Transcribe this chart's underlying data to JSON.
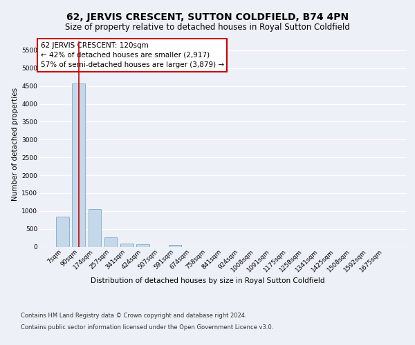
{
  "title": "62, JERVIS CRESCENT, SUTTON COLDFIELD, B74 4PN",
  "subtitle": "Size of property relative to detached houses in Royal Sutton Coldfield",
  "xlabel": "Distribution of detached houses by size in Royal Sutton Coldfield",
  "ylabel": "Number of detached properties",
  "categories": [
    "7sqm",
    "90sqm",
    "174sqm",
    "257sqm",
    "341sqm",
    "424sqm",
    "507sqm",
    "591sqm",
    "674sqm",
    "758sqm",
    "841sqm",
    "924sqm",
    "1008sqm",
    "1091sqm",
    "1175sqm",
    "1258sqm",
    "1341sqm",
    "1425sqm",
    "1508sqm",
    "1592sqm",
    "1675sqm"
  ],
  "values": [
    850,
    4580,
    1050,
    265,
    88,
    72,
    0,
    52,
    0,
    0,
    0,
    0,
    0,
    0,
    0,
    0,
    0,
    0,
    0,
    0,
    0
  ],
  "bar_color": "#c5d8ea",
  "bar_edge_color": "#7aaac8",
  "annotation_text": "62 JERVIS CRESCENT: 120sqm\n← 42% of detached houses are smaller (2,917)\n57% of semi-detached houses are larger (3,879) →",
  "annotation_box_color": "#ffffff",
  "annotation_box_edge_color": "#cc0000",
  "vline_x": 1.0,
  "vline_color": "#cc0000",
  "ylim": [
    0,
    5750
  ],
  "yticks": [
    0,
    500,
    1000,
    1500,
    2000,
    2500,
    3000,
    3500,
    4000,
    4500,
    5000,
    5500
  ],
  "footer_line1": "Contains HM Land Registry data © Crown copyright and database right 2024.",
  "footer_line2": "Contains public sector information licensed under the Open Government Licence v3.0.",
  "background_color": "#edf1f7",
  "plot_bg_color": "#edf1f7",
  "grid_color": "#ffffff",
  "title_fontsize": 10,
  "subtitle_fontsize": 8.5,
  "tick_fontsize": 6.5,
  "label_fontsize": 7.5,
  "ylabel_fontsize": 7.5,
  "footer_fontsize": 6,
  "annot_fontsize": 7.5
}
